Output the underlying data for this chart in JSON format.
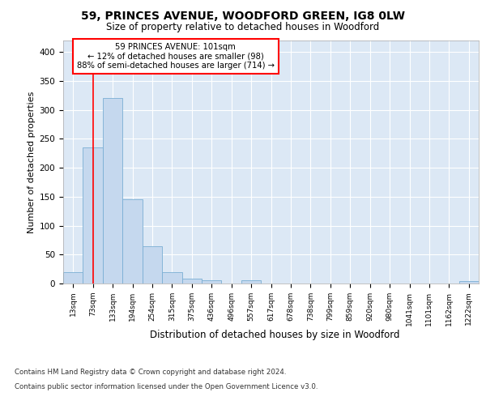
{
  "title_line1": "59, PRINCES AVENUE, WOODFORD GREEN, IG8 0LW",
  "title_line2": "Size of property relative to detached houses in Woodford",
  "xlabel": "Distribution of detached houses by size in Woodford",
  "ylabel": "Number of detached properties",
  "bar_labels": [
    "13sqm",
    "73sqm",
    "133sqm",
    "194sqm",
    "254sqm",
    "315sqm",
    "375sqm",
    "436sqm",
    "496sqm",
    "557sqm",
    "617sqm",
    "678sqm",
    "738sqm",
    "799sqm",
    "859sqm",
    "920sqm",
    "980sqm",
    "1041sqm",
    "1101sqm",
    "1162sqm",
    "1222sqm"
  ],
  "bar_values": [
    20,
    235,
    320,
    145,
    65,
    20,
    8,
    5,
    0,
    5,
    0,
    0,
    0,
    0,
    0,
    0,
    0,
    0,
    0,
    0,
    4
  ],
  "bar_color": "#c5d8ee",
  "bar_edge_color": "#7aafd4",
  "background_color": "#dce8f5",
  "grid_color": "#ffffff",
  "vline_x": 1,
  "vline_color": "red",
  "annotation_text": "59 PRINCES AVENUE: 101sqm\n← 12% of detached houses are smaller (98)\n88% of semi-detached houses are larger (714) →",
  "annotation_box_color": "white",
  "annotation_border_color": "red",
  "ylim": [
    0,
    420
  ],
  "yticks": [
    0,
    50,
    100,
    150,
    200,
    250,
    300,
    350,
    400
  ],
  "footer_line1": "Contains HM Land Registry data © Crown copyright and database right 2024.",
  "footer_line2": "Contains public sector information licensed under the Open Government Licence v3.0."
}
